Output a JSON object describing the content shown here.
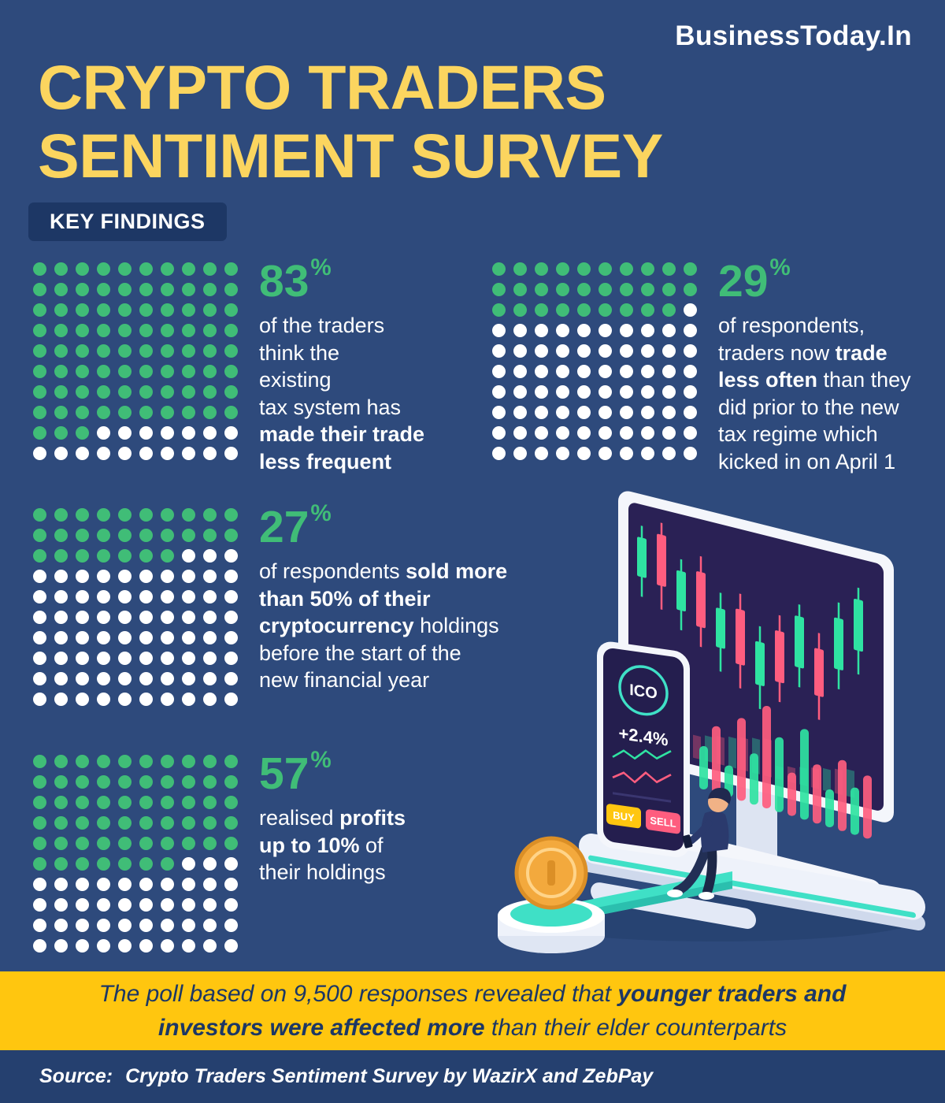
{
  "brand": "BusinessToday.In",
  "title": {
    "line1": "CRYPTO TRADERS",
    "line2": "SENTIMENT SURVEY"
  },
  "section_label": "KEY FINDINGS",
  "colors": {
    "background": "#2e4a7c",
    "title_yellow": "#fbd55f",
    "banner_yellow": "#ffc60f",
    "dot_green": "#40bd77",
    "dot_white": "#ffffff",
    "label_bg": "#1d3765",
    "source_bar_bg": "#25406f",
    "candle_green": "#2fe3a2",
    "candle_pink": "#fe5d7f",
    "coin_gold": "#f3a93d",
    "teal_accent": "#3fe0c6"
  },
  "stats": [
    {
      "value": "83",
      "unit": "%",
      "waffle": {
        "cols": 10,
        "rows": 10,
        "filled": 83
      },
      "lines": [
        [
          {
            "t": "of the traders"
          }
        ],
        [
          {
            "t": "think the"
          }
        ],
        [
          {
            "t": "existing"
          }
        ],
        [
          {
            "t": "tax system has"
          }
        ],
        [
          {
            "t": "made their trade",
            "b": true
          }
        ],
        [
          {
            "t": "less frequent",
            "b": true
          }
        ]
      ]
    },
    {
      "value": "29",
      "unit": "%",
      "waffle": {
        "cols": 10,
        "rows": 10,
        "filled": 29
      },
      "lines": [
        [
          {
            "t": "of respondents,"
          }
        ],
        [
          {
            "t": "traders now "
          },
          {
            "t": "trade",
            "b": true
          }
        ],
        [
          {
            "t": "less often",
            "b": true
          },
          {
            "t": " than they"
          }
        ],
        [
          {
            "t": "did prior to the new"
          }
        ],
        [
          {
            "t": "tax regime which"
          }
        ],
        [
          {
            "t": "kicked in on April 1"
          }
        ]
      ]
    },
    {
      "value": "27",
      "unit": "%",
      "waffle": {
        "cols": 10,
        "rows": 10,
        "filled": 27
      },
      "lines": [
        [
          {
            "t": "of respondents "
          },
          {
            "t": "sold more",
            "b": true
          }
        ],
        [
          {
            "t": "than 50% of their",
            "b": true
          }
        ],
        [
          {
            "t": "cryptocurrency",
            "b": true
          },
          {
            "t": " holdings"
          }
        ],
        [
          {
            "t": "before the start of the"
          }
        ],
        [
          {
            "t": "new financial year"
          }
        ]
      ]
    },
    {
      "value": "57",
      "unit": "%",
      "waffle": {
        "cols": 10,
        "rows": 10,
        "filled": 57
      },
      "lines": [
        [
          {
            "t": "realised "
          },
          {
            "t": "profits",
            "b": true
          }
        ],
        [
          {
            "t": "up to 10%",
            "b": true
          },
          {
            "t": " of"
          }
        ],
        [
          {
            "t": "their holdings"
          }
        ]
      ]
    }
  ],
  "illustration": {
    "ico_label": "ICO",
    "change": "+2.4%",
    "buy_label": "BUY",
    "sell_label": "SELL"
  },
  "banner": {
    "segments": [
      {
        "t": "The poll based on 9,500 responses revealed that "
      },
      {
        "t": "younger traders and investors were affected more",
        "b": true
      },
      {
        "t": " than their elder counterparts"
      }
    ]
  },
  "source": {
    "label": "Source:",
    "text": "Crypto Traders Sentiment Survey by WazirX and ZebPay"
  },
  "chart_data": [
    {
      "type": "waffle",
      "title": "Traders who think the existing tax system has made their trade less frequent",
      "value": 83,
      "total": 100,
      "unit": "%"
    },
    {
      "type": "waffle",
      "title": "Respondents who now trade less often than prior to the new tax regime (kicked in April 1)",
      "value": 29,
      "total": 100,
      "unit": "%"
    },
    {
      "type": "waffle",
      "title": "Respondents who sold more than 50% of their cryptocurrency holdings before the new financial year",
      "value": 27,
      "total": 100,
      "unit": "%"
    },
    {
      "type": "waffle",
      "title": "Respondents who realised profits up to 10% of their holdings",
      "value": 57,
      "total": 100,
      "unit": "%"
    }
  ]
}
